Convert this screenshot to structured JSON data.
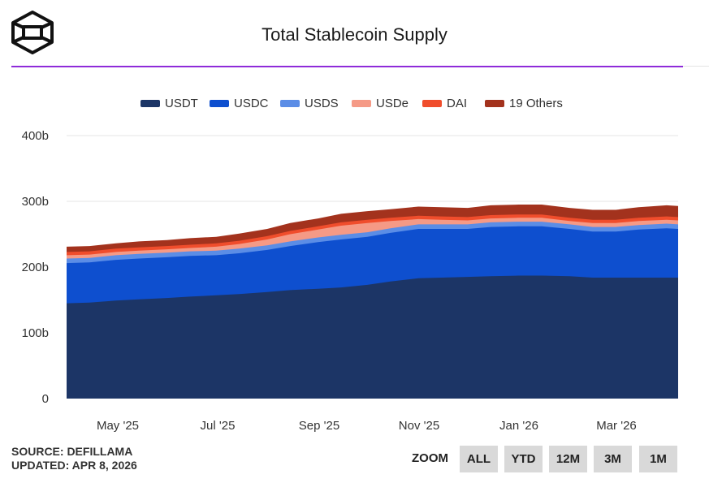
{
  "header": {
    "title": "Total Stablecoin Supply"
  },
  "footer": {
    "source": "SOURCE: DEFILLAMA",
    "updated": "UPDATED: APR 8, 2026"
  },
  "zoom": {
    "label": "ZOOM",
    "buttons": [
      "ALL",
      "YTD",
      "12M",
      "3M",
      "1M"
    ]
  },
  "chart_data": {
    "type": "area",
    "stacked": true,
    "title": "Total Stablecoin Supply",
    "ylim": [
      0,
      400
    ],
    "y_ticks": [
      "0",
      "100b",
      "200b",
      "300b",
      "400b"
    ],
    "x_tick_labels": [
      "May '25",
      "Jul '25",
      "Sep '25",
      "Nov '25",
      "Jan '26",
      "Mar '26"
    ],
    "legend_position": "top",
    "grid": true,
    "x": [
      "2025-04-01",
      "2025-04-15",
      "2025-05-01",
      "2025-05-15",
      "2025-06-01",
      "2025-06-15",
      "2025-07-01",
      "2025-07-15",
      "2025-08-01",
      "2025-08-15",
      "2025-09-01",
      "2025-09-15",
      "2025-10-01",
      "2025-10-15",
      "2025-11-01",
      "2025-11-15",
      "2025-12-01",
      "2025-12-15",
      "2026-01-01",
      "2026-01-15",
      "2026-02-01",
      "2026-02-15",
      "2026-03-01",
      "2026-03-15",
      "2026-04-01",
      "2026-04-08"
    ],
    "series": [
      {
        "name": "USDT",
        "color": "#1c3566",
        "values": [
          145,
          146,
          149,
          151,
          153,
          155,
          157,
          159,
          162,
          165,
          167,
          169,
          173,
          178,
          183,
          184,
          185,
          186,
          187,
          187,
          186,
          184,
          184,
          184,
          184,
          184
        ]
      },
      {
        "name": "USDC",
        "color": "#0e4fcf",
        "values": [
          61,
          61,
          62,
          62,
          62,
          62,
          61,
          62,
          64,
          67,
          71,
          73,
          73,
          74,
          75,
          74,
          73,
          75,
          75,
          75,
          72,
          70,
          70,
          73,
          75,
          74
        ]
      },
      {
        "name": "USDS",
        "color": "#5b8de6",
        "values": [
          7,
          7,
          7,
          7,
          7,
          7,
          7,
          7,
          7,
          7,
          7,
          7,
          7,
          7,
          7,
          7,
          7,
          7,
          7,
          7,
          7,
          7,
          7,
          7,
          7,
          7
        ]
      },
      {
        "name": "USDe",
        "color": "#f59a86",
        "values": [
          5,
          5,
          5,
          5,
          5,
          5,
          6,
          7,
          9,
          11,
          12,
          14,
          14,
          11,
          8,
          7,
          6,
          6,
          6,
          6,
          5,
          6,
          6,
          6,
          6,
          6
        ]
      },
      {
        "name": "DAI",
        "color": "#f04d2c",
        "values": [
          5,
          5,
          5,
          5,
          5,
          5,
          5,
          5,
          5,
          5,
          5,
          5,
          5,
          5,
          5,
          5,
          5,
          5,
          5,
          5,
          5,
          5,
          5,
          5,
          5,
          5
        ]
      },
      {
        "name": "19 Others",
        "color": "#a3321d",
        "values": [
          8,
          8,
          8,
          9,
          9,
          10,
          10,
          11,
          11,
          12,
          12,
          13,
          13,
          13,
          14,
          14,
          14,
          15,
          15,
          15,
          15,
          15,
          15,
          16,
          17,
          17
        ]
      }
    ]
  }
}
